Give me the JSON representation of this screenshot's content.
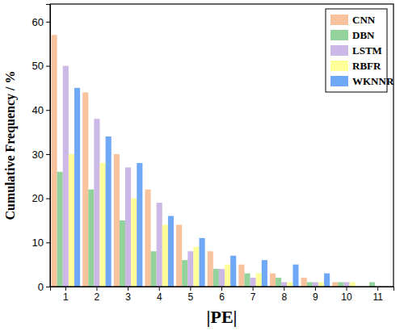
{
  "chart_data": {
    "type": "bar",
    "x_label": "|PE|",
    "y_label": "Cumulative Frequency / %",
    "categories": [
      "1",
      "2",
      "3",
      "4",
      "5",
      "6",
      "7",
      "8",
      "9",
      "10",
      "11"
    ],
    "series": [
      {
        "name": "CNN",
        "color": "#f8c29c",
        "values": [
          57,
          44,
          30,
          22,
          14,
          8,
          5,
          3,
          2,
          1,
          0
        ]
      },
      {
        "name": "DBN",
        "color": "#93d29a",
        "values": [
          26,
          22,
          15,
          8,
          6,
          4,
          3,
          2,
          1,
          1,
          1
        ]
      },
      {
        "name": "LSTM",
        "color": "#cbb8e6",
        "values": [
          50,
          38,
          27,
          19,
          8,
          4,
          2,
          1,
          1,
          1,
          0
        ]
      },
      {
        "name": "RBFR",
        "color": "#ffff99",
        "values": [
          30,
          28,
          20,
          14,
          9,
          5,
          3,
          1,
          1,
          1,
          0
        ]
      },
      {
        "name": "WKNNR",
        "color": "#6fa8f7",
        "values": [
          45,
          34,
          28,
          16,
          11,
          7,
          6,
          5,
          3,
          0,
          0
        ]
      }
    ],
    "ylim": [
      0,
      64
    ],
    "yticks": [
      0,
      10,
      20,
      30,
      40,
      50,
      60
    ],
    "legend": "top-right",
    "grid": false
  }
}
